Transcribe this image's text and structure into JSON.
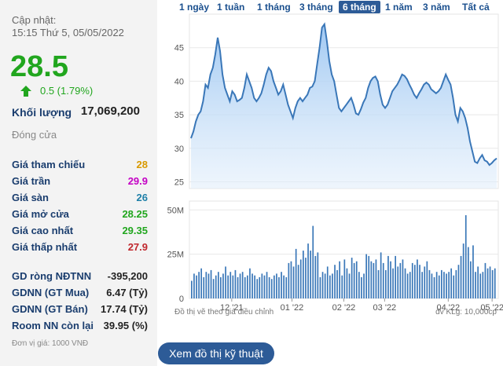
{
  "update_label": "Cập nhật:",
  "update_time": "15:15 Thứ 5, 05/05/2022",
  "price": "28.5",
  "change": "0.5 (1.79%)",
  "volume_label": "Khối lượng",
  "volume_value": "17,069,200",
  "status": "Đóng cửa",
  "price_rows": [
    {
      "label": "Giá tham chiếu",
      "value": "28",
      "color": "#d89a00"
    },
    {
      "label": "Giá trần",
      "value": "29.9",
      "color": "#c400c4"
    },
    {
      "label": "Giá sàn",
      "value": "26",
      "color": "#1e7fa8"
    },
    {
      "label": "Giá mở cửa",
      "value": "28.25",
      "color": "#21a61e"
    },
    {
      "label": "Giá cao nhất",
      "value": "29.35",
      "color": "#21a61e"
    },
    {
      "label": "Giá thấp nhất",
      "value": "27.9",
      "color": "#c0272d"
    }
  ],
  "foreign_rows": [
    {
      "label": "GD ròng NĐTNN",
      "value": "-395,200"
    },
    {
      "label": "GDNN (GT Mua)",
      "value": "6.47 (Tỷ)"
    },
    {
      "label": "GDNN (GT Bán)",
      "value": "17.74 (Tỷ)"
    },
    {
      "label": "Room NN còn lại",
      "value": "39.95 (%)"
    }
  ],
  "unit_note": "Đơn vị giá: 1000 VNĐ",
  "tabs": [
    "1 ngày",
    "1 tuần",
    "1 tháng",
    "3 tháng",
    "6 tháng",
    "1 năm",
    "3 năm",
    "Tất cả"
  ],
  "active_tab": "6 tháng",
  "chart_footnote": "Đồ thị vẽ theo giá điều chỉnh",
  "volume_unit": "đv KLg: 10,000cp",
  "technical_button": "Xem đồ thị kỹ thuật",
  "colors": {
    "up": "#21a61e",
    "line": "#3a77b8",
    "area_top": "#9cc6f2",
    "volume_bar": "#3a77b8",
    "accent": "#2d5b97"
  },
  "chart_data": [
    {
      "type": "area",
      "title": "",
      "xlabel": "",
      "ylabel": "",
      "ylim": [
        24,
        50
      ],
      "yticks": [
        25,
        30,
        35,
        40,
        45
      ],
      "xtick_labels": [
        "12 '21",
        "01 '22",
        "02 '22",
        "03 '22",
        "04 '22",
        "05 '22"
      ],
      "grid": true,
      "series": [
        {
          "values": [
            31.5,
            32.5,
            34,
            35,
            35.5,
            37,
            39.5,
            39,
            41,
            42,
            44,
            46.5,
            44.5,
            41,
            39,
            38,
            37,
            38.5,
            38,
            37,
            37.2,
            37.5,
            39,
            41,
            40,
            39,
            37.5,
            37,
            37.5,
            38.2,
            39.5,
            41,
            42,
            41.5,
            40,
            39,
            38,
            38.5,
            39.5,
            38,
            36.5,
            35.5,
            34.5,
            36,
            37,
            37.5,
            37,
            37.5,
            38,
            39,
            39.2,
            40,
            42.5,
            45,
            48,
            48.5,
            46,
            43,
            41,
            40,
            38,
            36,
            35.5,
            36,
            36.5,
            37,
            37.5,
            36.5,
            35.2,
            35,
            35.8,
            36.8,
            37.5,
            39,
            40,
            40.5,
            40.7,
            40,
            38,
            36.5,
            36,
            36.5,
            37.5,
            38.5,
            39,
            39.5,
            40.2,
            41,
            40.8,
            40.3,
            39.5,
            38.8,
            38,
            37.5,
            38.2,
            38.8,
            39.5,
            39.8,
            39.5,
            38.8,
            38.5,
            38.2,
            38.5,
            39,
            40,
            41,
            40.2,
            39.5,
            37.5,
            35,
            34,
            36,
            35.5,
            34.5,
            33,
            31,
            29.5,
            28,
            27.8,
            28.5,
            29,
            28.2,
            28,
            27.5,
            27.8,
            28.2,
            28.5
          ]
        }
      ]
    },
    {
      "type": "bar",
      "title": "",
      "ylim": [
        0,
        55
      ],
      "yticks": [
        0,
        25,
        50
      ],
      "ytick_labels": [
        "0",
        "25M",
        "50M"
      ],
      "series": [
        {
          "name": "",
          "values": [
            10,
            14,
            13,
            15,
            17,
            12,
            15,
            14,
            16,
            11,
            13,
            15,
            12,
            14,
            18,
            13,
            15,
            13,
            16,
            12,
            14,
            15,
            12,
            13,
            17,
            14,
            13,
            11,
            12,
            14,
            13,
            15,
            12,
            11,
            13,
            14,
            12,
            15,
            13,
            12,
            20,
            21,
            18,
            28,
            19,
            22,
            27,
            23,
            31,
            27,
            41,
            24,
            26,
            12,
            15,
            14,
            18,
            13,
            14,
            19,
            16,
            21,
            13,
            22,
            17,
            14,
            23,
            20,
            21,
            15,
            12,
            14,
            25,
            24,
            21,
            20,
            22,
            16,
            26,
            20,
            16,
            24,
            21,
            17,
            24,
            18,
            20,
            22,
            17,
            14,
            15,
            20,
            19,
            22,
            19,
            15,
            18,
            21,
            16,
            14,
            12,
            15,
            13,
            16,
            15,
            14,
            15,
            17,
            13,
            16,
            19,
            24,
            31,
            47,
            29,
            21,
            30,
            15,
            18,
            14,
            15,
            20,
            17,
            18,
            16,
            17
          ]
        }
      ]
    }
  ]
}
